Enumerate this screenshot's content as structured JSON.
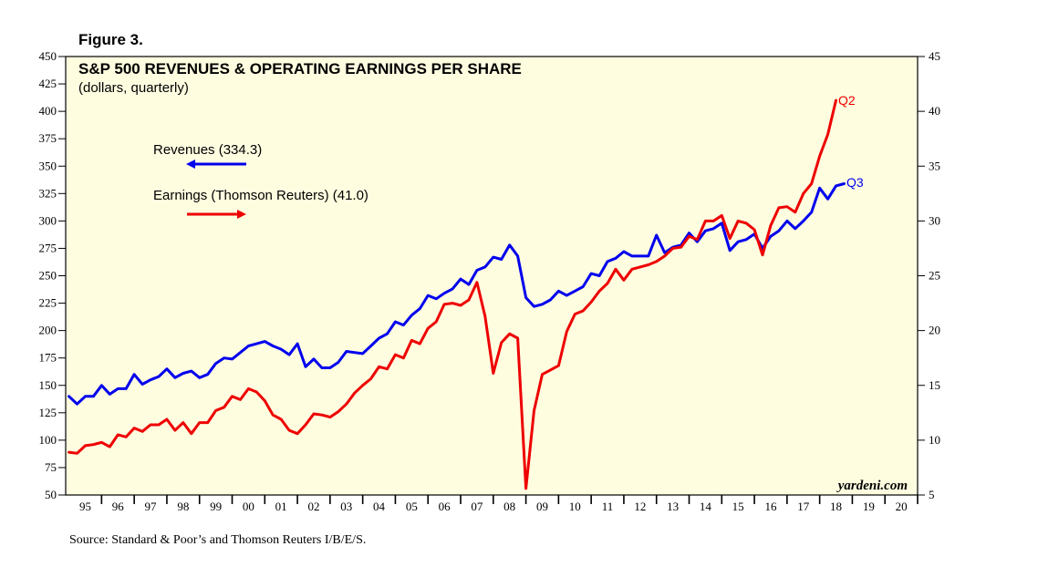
{
  "figure_label": "Figure 3.",
  "source": "Source: Standard & Poor’s and Thomson Reuters I/B/E/S.",
  "brand": "yardeni.com",
  "chart_data": {
    "type": "line",
    "title": "S&P 500 REVENUES & OPERATING EARNINGS PER SHARE",
    "subtitle": "(dollars, quarterly)",
    "background_color": "#fffde0",
    "x_start": 1995.0,
    "x_range": [
      1994.9,
      2021.0
    ],
    "x_tick_labels": [
      "95",
      "96",
      "97",
      "98",
      "99",
      "00",
      "01",
      "02",
      "03",
      "04",
      "05",
      "06",
      "07",
      "08",
      "09",
      "10",
      "11",
      "12",
      "13",
      "14",
      "15",
      "16",
      "17",
      "18",
      "19",
      "20"
    ],
    "y_left": {
      "range": [
        50,
        450
      ],
      "ticks": [
        50,
        75,
        100,
        125,
        150,
        175,
        200,
        225,
        250,
        275,
        300,
        325,
        350,
        375,
        400,
        425,
        450
      ]
    },
    "y_right": {
      "range": [
        5,
        45
      ],
      "ticks": [
        5,
        10,
        15,
        20,
        25,
        30,
        35,
        40,
        45
      ]
    },
    "series": [
      {
        "name": "Revenues (334.3)",
        "axis": "left",
        "color": "#0000ee",
        "arrow": "left",
        "end_label": "Q3",
        "values": [
          140,
          133,
          140,
          140,
          150,
          142,
          147,
          147,
          160,
          151,
          155,
          158,
          165,
          157,
          161,
          163,
          157,
          160,
          170,
          175,
          174,
          180,
          186,
          188,
          190,
          186,
          183,
          178,
          188,
          167,
          174,
          166,
          166,
          171,
          181,
          180,
          179,
          186,
          193,
          197,
          208,
          205,
          214,
          220,
          232,
          229,
          234,
          238,
          247,
          242,
          255,
          258,
          267,
          265,
          278,
          268,
          230,
          222,
          224,
          228,
          236,
          232,
          236,
          240,
          252,
          250,
          263,
          266,
          272,
          268,
          268,
          268,
          287,
          271,
          276,
          278,
          289,
          281,
          291,
          293,
          298,
          273,
          281,
          283,
          288,
          275,
          286,
          291,
          300,
          293,
          300,
          308,
          330,
          320,
          332,
          334
        ]
      },
      {
        "name": "Earnings (Thomson Reuters) (41.0)",
        "axis": "right",
        "color": "#ee0000",
        "arrow": "right",
        "end_label": "Q2",
        "values": [
          8.9,
          8.8,
          9.5,
          9.6,
          9.8,
          9.4,
          10.5,
          10.3,
          11.1,
          10.8,
          11.4,
          11.4,
          11.9,
          10.9,
          11.6,
          10.6,
          11.6,
          11.6,
          12.7,
          13.0,
          14.0,
          13.7,
          14.7,
          14.4,
          13.6,
          12.3,
          11.9,
          10.9,
          10.6,
          11.4,
          12.4,
          12.3,
          12.1,
          12.6,
          13.3,
          14.3,
          15.0,
          15.6,
          16.7,
          16.5,
          17.8,
          17.5,
          19.1,
          18.8,
          20.2,
          20.8,
          22.4,
          22.5,
          22.3,
          22.8,
          24.4,
          21.3,
          16.1,
          18.9,
          19.7,
          19.3,
          5.6,
          12.7,
          16.0,
          16.4,
          16.8,
          19.9,
          21.5,
          21.8,
          22.6,
          23.6,
          24.3,
          25.6,
          24.6,
          25.6,
          25.8,
          26.0,
          26.3,
          26.8,
          27.5,
          27.6,
          28.6,
          28.3,
          30.0,
          30.0,
          30.5,
          28.4,
          30.0,
          29.8,
          29.2,
          26.9,
          29.6,
          31.2,
          31.3,
          30.8,
          32.5,
          33.4,
          35.9,
          37.9,
          41.0
        ]
      }
    ]
  }
}
